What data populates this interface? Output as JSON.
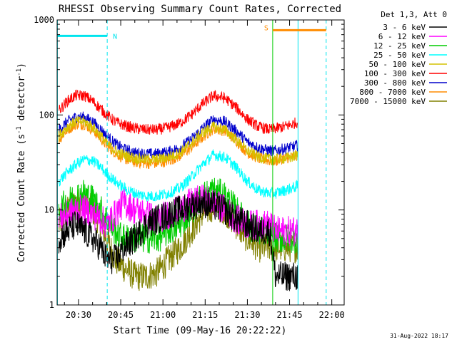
{
  "chart_data": {
    "type": "line",
    "title": "RHESSI Observing Summary Count Rates, Corrected",
    "xlabel": "Start Time (09-May-16 20:22:22)",
    "ylabel_html": "Corrected Count Rate (s⁻¹ detector⁻¹)",
    "ylabel_parts": [
      "Corrected Count Rate (s",
      "-1",
      " detector",
      "-1",
      ")"
    ],
    "y_scale": "log",
    "ylim": [
      1,
      1000
    ],
    "y_ticks": [
      {
        "value": 1,
        "label": "1"
      },
      {
        "value": 10,
        "label": "10"
      },
      {
        "value": 100,
        "label": "100"
      },
      {
        "value": 1000,
        "label": "1000"
      }
    ],
    "xlim_minutes": [
      22.4,
      124.4
    ],
    "x_ticks": [
      {
        "minutes": 30,
        "label": "20:30"
      },
      {
        "minutes": 45,
        "label": "20:45"
      },
      {
        "minutes": 60,
        "label": "21:00"
      },
      {
        "minutes": 75,
        "label": "21:15"
      },
      {
        "minutes": 90,
        "label": "21:30"
      },
      {
        "minutes": 105,
        "label": "21:45"
      },
      {
        "minutes": 120,
        "label": "22:00"
      }
    ],
    "legend_title": "Det 1,3, Att 0",
    "legend_position": "right",
    "timestamp": "31-Aug-2022 18:17",
    "markers": [
      {
        "label": "N",
        "color": "#00e5ee",
        "minutes_start": 22.4,
        "minutes_end": 40.2,
        "level": 680,
        "vline": 40.2
      },
      {
        "label": "S",
        "color": "#ff8c00",
        "minutes_start": 99.0,
        "minutes_end": 118.0,
        "level": 780,
        "vline": 99.0
      }
    ],
    "vlines": [
      {
        "minutes": 22.5,
        "color": "#00e5ee",
        "style": "solid"
      },
      {
        "minutes": 40.2,
        "color": "#00e5ee",
        "style": "dashed"
      },
      {
        "minutes": 99.0,
        "color": "#00cc00",
        "style": "solid"
      },
      {
        "minutes": 108.0,
        "color": "#00e5ee",
        "style": "solid"
      },
      {
        "minutes": 118.0,
        "color": "#00e5ee",
        "style": "dashed"
      }
    ],
    "series": [
      {
        "name": "3 - 6 keV",
        "color": "#000000",
        "x": [
          23,
          26,
          29,
          32,
          35,
          38,
          40,
          43,
          46,
          50,
          54,
          58,
          62,
          66,
          70,
          74,
          78,
          82,
          86,
          90,
          94,
          98,
          100,
          103,
          106,
          108
        ],
        "y": [
          5,
          6,
          7,
          6,
          5,
          4,
          3,
          3,
          4,
          5,
          7,
          8,
          9,
          10,
          11,
          12,
          11,
          10,
          8,
          7,
          6,
          6,
          2,
          2,
          2,
          2
        ]
      },
      {
        "name": "6 - 12 keV",
        "color": "#ff00ff",
        "x": [
          23,
          26,
          29,
          32,
          35,
          38,
          40,
          43,
          46,
          50,
          54,
          58,
          62,
          66,
          70,
          74,
          78,
          82,
          86,
          90,
          94,
          98,
          100,
          103,
          106,
          108
        ],
        "y": [
          8,
          9,
          10,
          10,
          9,
          8,
          7,
          9,
          12,
          10,
          9,
          8,
          9,
          10,
          12,
          13,
          12,
          10,
          8,
          7,
          7,
          7,
          6,
          6,
          6,
          6
        ]
      },
      {
        "name": "12 - 25 keV",
        "color": "#00cc00",
        "x": [
          23,
          26,
          29,
          32,
          35,
          38,
          40,
          43,
          46,
          50,
          54,
          58,
          62,
          66,
          70,
          74,
          78,
          82,
          86,
          90,
          94,
          98,
          100,
          103,
          106,
          108
        ],
        "y": [
          10,
          12,
          14,
          15,
          13,
          10,
          8,
          6,
          5,
          5,
          5,
          5,
          6,
          7,
          10,
          14,
          16,
          14,
          10,
          7,
          6,
          6,
          5,
          5,
          5,
          5
        ]
      },
      {
        "name": "25 - 50 keV",
        "color": "#00ffff",
        "x": [
          23,
          26,
          29,
          32,
          35,
          38,
          40,
          43,
          46,
          50,
          54,
          58,
          62,
          66,
          70,
          74,
          78,
          82,
          86,
          90,
          94,
          98,
          100,
          103,
          106,
          108
        ],
        "y": [
          20,
          25,
          30,
          34,
          33,
          28,
          24,
          20,
          17,
          15,
          14,
          14,
          15,
          17,
          22,
          30,
          38,
          36,
          28,
          20,
          16,
          15,
          15,
          16,
          17,
          18
        ]
      },
      {
        "name": "50 - 100 keV",
        "color": "#d4c200",
        "x": [
          23,
          26,
          29,
          32,
          35,
          38,
          40,
          43,
          46,
          50,
          54,
          58,
          62,
          66,
          70,
          74,
          78,
          82,
          86,
          90,
          94,
          98,
          100,
          103,
          106,
          108
        ],
        "y": [
          60,
          75,
          85,
          85,
          75,
          60,
          50,
          42,
          38,
          35,
          34,
          34,
          36,
          40,
          50,
          65,
          75,
          70,
          55,
          42,
          36,
          34,
          34,
          35,
          36,
          38
        ]
      },
      {
        "name": "100 - 300 keV",
        "color": "#ff0000",
        "x": [
          23,
          26,
          29,
          32,
          35,
          38,
          40,
          43,
          46,
          50,
          54,
          58,
          62,
          66,
          70,
          74,
          78,
          82,
          86,
          90,
          94,
          98,
          100,
          103,
          106,
          108
        ],
        "y": [
          110,
          140,
          160,
          160,
          140,
          115,
          100,
          85,
          78,
          72,
          70,
          70,
          74,
          82,
          100,
          130,
          160,
          150,
          120,
          90,
          75,
          70,
          72,
          75,
          80,
          85
        ]
      },
      {
        "name": "300 - 800 keV",
        "color": "#0000cc",
        "x": [
          23,
          26,
          29,
          32,
          35,
          38,
          40,
          43,
          46,
          50,
          54,
          58,
          62,
          66,
          70,
          74,
          78,
          82,
          86,
          90,
          94,
          98,
          100,
          103,
          106,
          108
        ],
        "y": [
          70,
          85,
          95,
          95,
          85,
          70,
          60,
          50,
          44,
          40,
          39,
          39,
          41,
          45,
          55,
          72,
          90,
          85,
          68,
          52,
          45,
          42,
          42,
          44,
          46,
          48
        ]
      },
      {
        "name": "800 - 7000 keV",
        "color": "#ff8c00",
        "x": [
          23,
          26,
          29,
          32,
          35,
          38,
          40,
          43,
          46,
          50,
          54,
          58,
          62,
          66,
          70,
          74,
          78,
          82,
          86,
          90,
          94,
          98,
          100,
          103,
          106,
          108
        ],
        "y": [
          55,
          70,
          80,
          80,
          70,
          56,
          48,
          40,
          35,
          32,
          31,
          31,
          33,
          37,
          45,
          58,
          72,
          68,
          54,
          40,
          35,
          33,
          33,
          35,
          36,
          38
        ]
      },
      {
        "name": "7000 - 15000 keV",
        "color": "#808000",
        "x": [
          23,
          26,
          29,
          32,
          35,
          38,
          40,
          43,
          46,
          50,
          54,
          58,
          62,
          66,
          70,
          74,
          78,
          82,
          86,
          90,
          94,
          98,
          100,
          103,
          106,
          108
        ],
        "y": [
          7,
          10,
          12,
          12,
          10,
          7,
          5,
          3,
          2.5,
          2,
          2,
          2.2,
          3,
          4,
          6,
          9,
          11,
          10,
          7,
          5,
          4,
          4,
          4,
          4,
          4,
          4
        ]
      }
    ]
  }
}
